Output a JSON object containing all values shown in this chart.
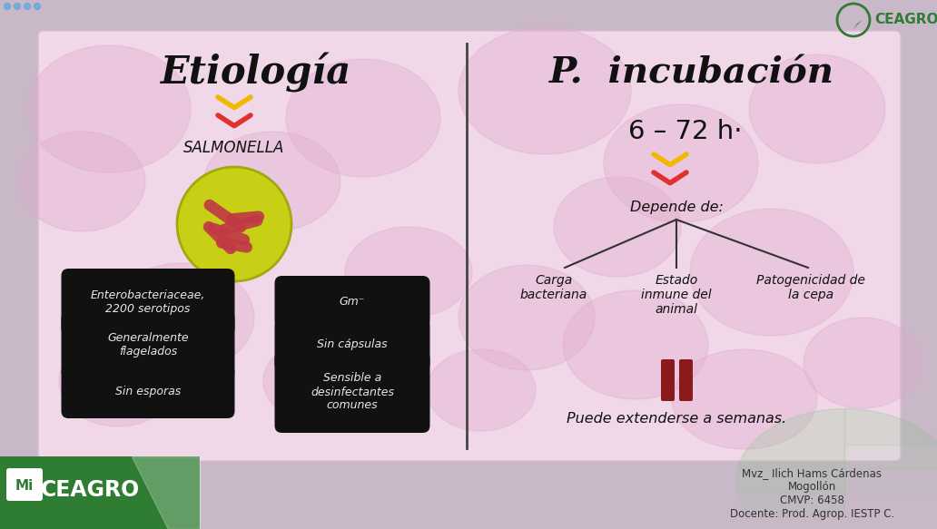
{
  "outer_bg": "#c8b8c8",
  "card_bg": "#f0d8e8",
  "title_left": "Etiología",
  "title_right": "P.  incubación",
  "salmonella_label": "SALMONELLA",
  "incubation_time": "6 – 72 h·",
  "depends_label": "Depende de:",
  "branch_labels": [
    "Carga\nbacteriana",
    "Estado\ninmune del\nanimal",
    "Patogenicidad de\nla cepa"
  ],
  "extension_label": "Puede extenderse a semanas.",
  "pill_labels_left": [
    "Enterobacteriaceae,\n2200 serotipos",
    "Generalmente\nflagelados",
    "Sin esporas"
  ],
  "pill_labels_right": [
    "Gm⁻",
    "Sin cápsulas",
    "Sensible a\ndesinfectantes\ncomunes"
  ],
  "pill_bg": "#111111",
  "pill_text_color": "#e8e8e8",
  "divider_color": "#444444",
  "arrow_yellow": "#f0b800",
  "arrow_red": "#e03030",
  "bar_color": "#8b1a1a",
  "footer_bg": "#2e7d32",
  "credits": "Mvz_ Ilich Hams Cárdenas\nMogollón\nCMVP: 6458\nDocente: Prod. Agrop. IESTP C.",
  "ceagro_color": "#2e7d32",
  "blob_color": "#e0a8cc",
  "blob_alpha": 0.35,
  "dots_color": "#66aadd"
}
